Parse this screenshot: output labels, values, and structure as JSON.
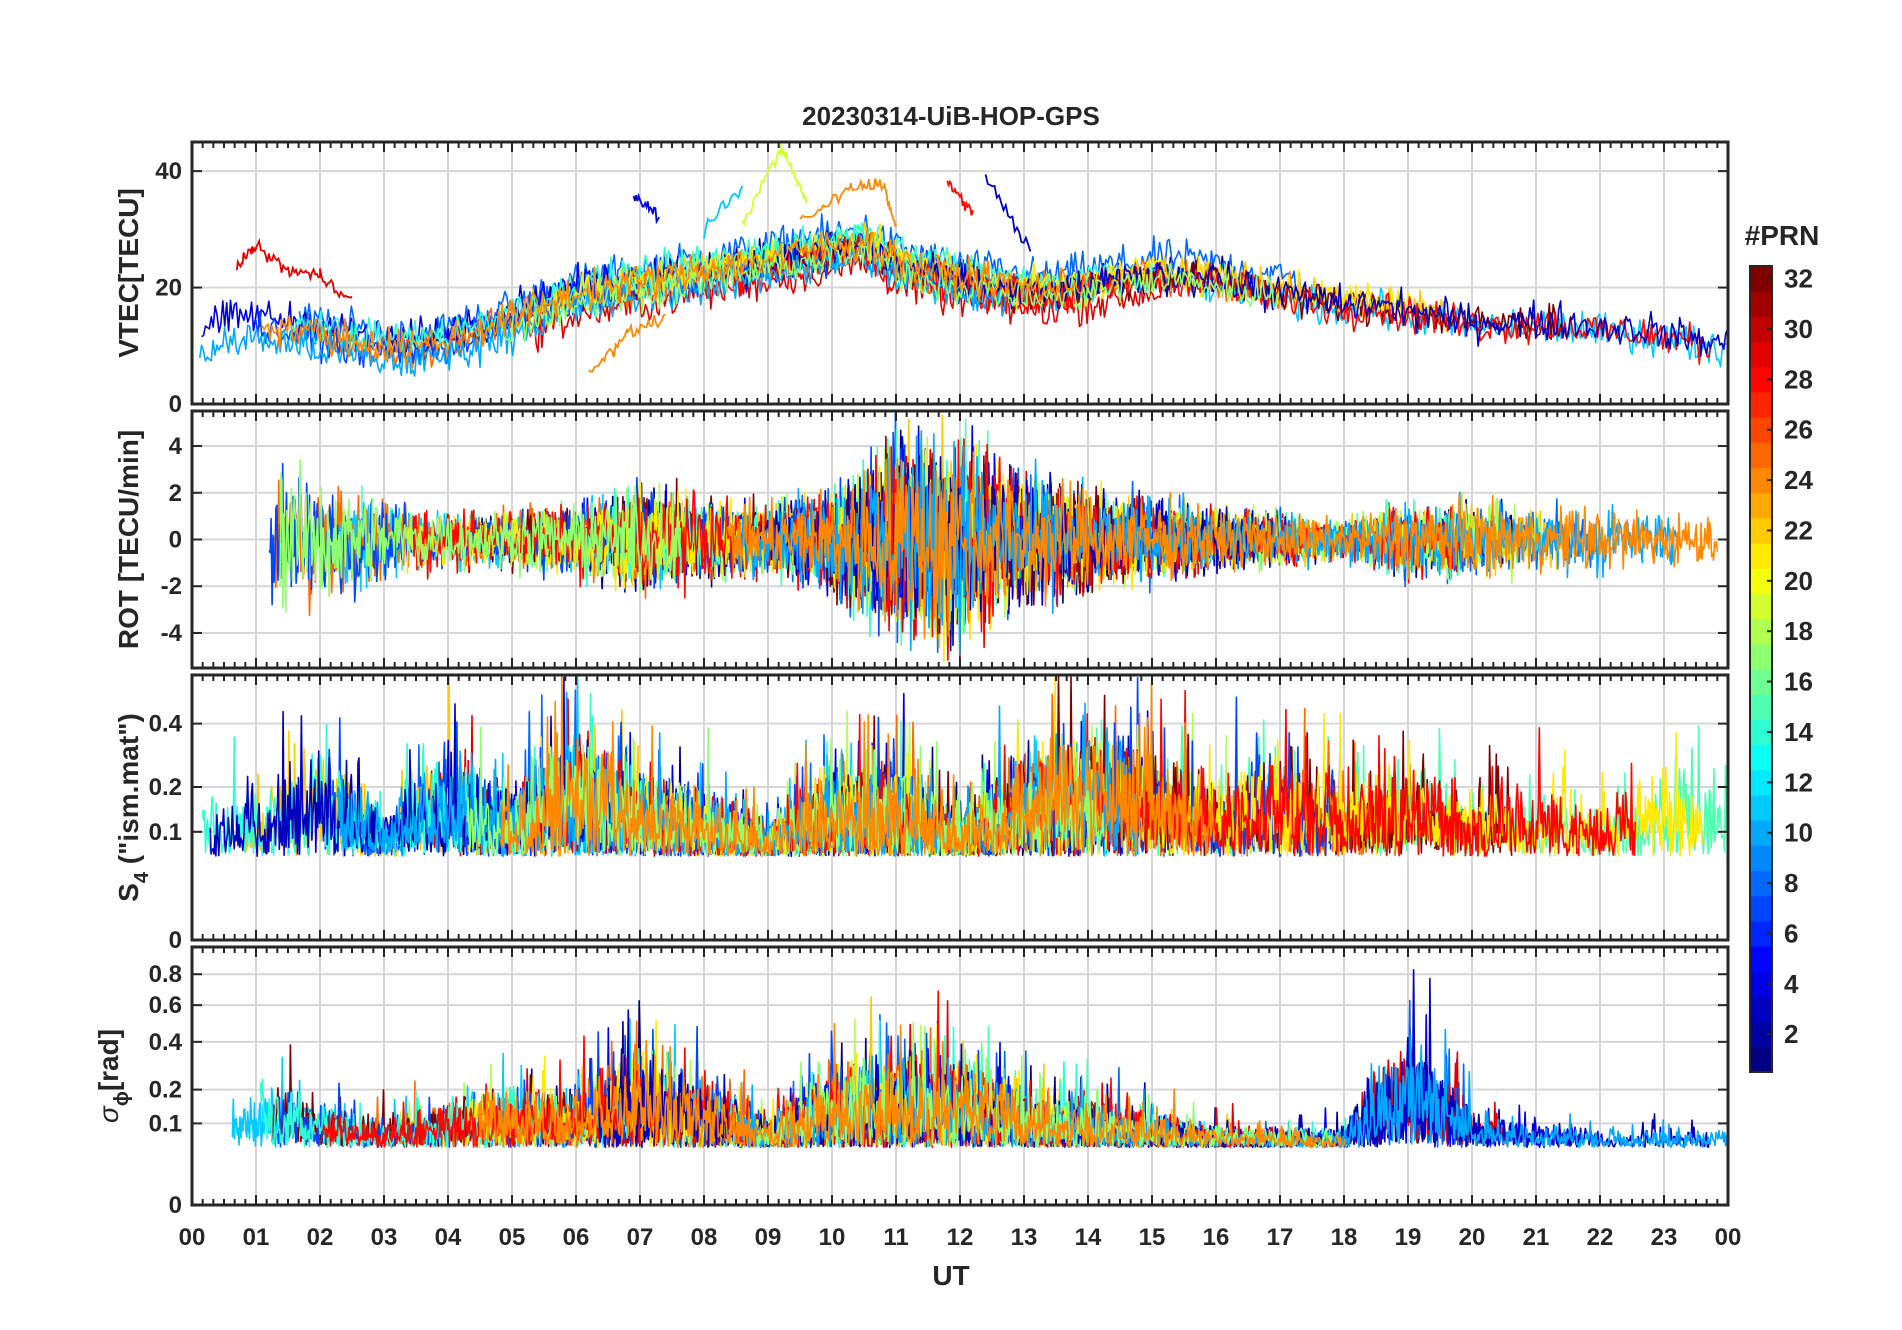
{
  "chart_data": {
    "type": "line",
    "title": "20230314-UiB-HOP-GPS",
    "xlabel": "UT",
    "x_ticks": [
      "00",
      "01",
      "02",
      "03",
      "04",
      "05",
      "06",
      "07",
      "08",
      "09",
      "10",
      "11",
      "12",
      "13",
      "14",
      "15",
      "16",
      "17",
      "18",
      "19",
      "20",
      "21",
      "22",
      "23",
      "00"
    ],
    "xlim": [
      0,
      24
    ],
    "grid": true,
    "colorbar": {
      "label": "#PRN",
      "colormap": "jet",
      "range": [
        1,
        32
      ],
      "ticks": [
        "2",
        "4",
        "6",
        "8",
        "10",
        "12",
        "14",
        "16",
        "18",
        "20",
        "22",
        "24",
        "26",
        "28",
        "30",
        "32"
      ]
    },
    "panels": [
      {
        "id": "vtec",
        "ylabel": "VTEC[TECU]",
        "ylim": [
          0,
          45
        ],
        "yticks": [
          {
            "v": 0,
            "t": "0"
          },
          {
            "v": 20,
            "t": "20"
          },
          {
            "v": 40,
            "t": "40"
          }
        ],
        "baseline": {
          "x": [
            0,
            0.5,
            1,
            1.5,
            2,
            2.5,
            3,
            3.5,
            4,
            4.5,
            5,
            5.5,
            6,
            6.5,
            7,
            7.5,
            8,
            8.5,
            9,
            9.5,
            10,
            10.5,
            11,
            11.5,
            12,
            12.5,
            13,
            13.5,
            14,
            14.5,
            15,
            15.5,
            16,
            16.5,
            17,
            17.5,
            18,
            18.5,
            19,
            19.5,
            20,
            20.5,
            21,
            21.5,
            22,
            22.5,
            23,
            23.5,
            24
          ],
          "y": [
            10,
            12,
            13,
            12,
            11,
            10,
            9,
            9,
            10,
            12,
            14,
            16,
            18,
            19,
            20,
            21,
            22,
            23,
            24,
            25,
            26,
            27,
            24,
            22,
            21,
            20,
            19,
            19,
            20,
            21,
            22,
            22,
            21,
            20,
            19,
            18,
            17,
            17,
            16,
            15,
            14,
            14,
            14,
            14,
            13,
            13,
            12,
            11,
            10
          ]
        },
        "highlights": [
          {
            "prn": 4,
            "x": [
              6.9,
              7.3
            ],
            "y": [
              36,
              32
            ]
          },
          {
            "prn": 3,
            "x": [
              12.4,
              13.1
            ],
            "y": [
              39,
              26
            ]
          },
          {
            "prn": 19,
            "x": [
              8.6,
              9.2,
              9.6
            ],
            "y": [
              31,
              44,
              35
            ]
          },
          {
            "prn": 24,
            "x": [
              9.5,
              10.3,
              10.8,
              11.0
            ],
            "y": [
              31,
              37,
              38,
              30
            ]
          },
          {
            "prn": 28,
            "x": [
              11.8,
              12.2
            ],
            "y": [
              38,
              33
            ]
          },
          {
            "prn": 11,
            "x": [
              8.0,
              8.6
            ],
            "y": [
              30,
              37
            ]
          },
          {
            "prn": 29,
            "x": [
              0.7,
              1.0,
              1.5,
              2.0,
              2.5
            ],
            "y": [
              24,
              27,
              23,
              22,
              18
            ]
          },
          {
            "prn": 24,
            "x": [
              6.2,
              6.8,
              7.4
            ],
            "y": [
              5,
              12,
              15
            ]
          }
        ],
        "noise": 2.2,
        "spikes": 0
      },
      {
        "id": "rot",
        "ylabel": "ROT [TECU/min]",
        "ylim": [
          -5.5,
          5.5
        ],
        "yticks": [
          {
            "v": -4,
            "t": "-4"
          },
          {
            "v": -2,
            "t": "-2"
          },
          {
            "v": 0,
            "t": "0"
          },
          {
            "v": 2,
            "t": "2"
          },
          {
            "v": 4,
            "t": "4"
          }
        ],
        "baseline": {
          "x": [
            0,
            24
          ],
          "y": [
            0,
            0
          ]
        },
        "activity": {
          "x": [
            0,
            1,
            2,
            3,
            4,
            5,
            6,
            7,
            8,
            9,
            10,
            11,
            12,
            13,
            14,
            15,
            16,
            17,
            18,
            19,
            20,
            21,
            22,
            23,
            24
          ],
          "amp": [
            2.0,
            2.6,
            2.0,
            1.3,
            0.9,
            0.9,
            1.1,
            1.6,
            1.3,
            1.0,
            1.6,
            3.2,
            3.2,
            2.0,
            1.6,
            1.3,
            1.0,
            0.8,
            0.7,
            1.2,
            1.2,
            1.0,
            1.1,
            0.9,
            0.7
          ]
        },
        "noise": 1.0,
        "spikes": 0
      },
      {
        "id": "s4",
        "ylabel": "S",
        "ylabel_sub": "4",
        "ylabel_tail": " (\"ism.mat\")",
        "ylim": [
          0,
          0.6
        ],
        "scale": "sqrt",
        "yticks": [
          {
            "v": 0,
            "t": "0"
          },
          {
            "v": 0.1,
            "t": "0.1"
          },
          {
            "v": 0.2,
            "t": "0.2"
          },
          {
            "v": 0.4,
            "t": "0.4"
          }
        ],
        "baseline": {
          "x": [
            0,
            24
          ],
          "y": [
            0.06,
            0.06
          ]
        },
        "activity": {
          "x": [
            0,
            1,
            2,
            3,
            4,
            5,
            6,
            7,
            8,
            9,
            10,
            11,
            12,
            13,
            14,
            15,
            16,
            17,
            18,
            19,
            20,
            21,
            22,
            23,
            24
          ],
          "amp": [
            0.12,
            0.18,
            0.35,
            0.12,
            0.3,
            0.18,
            0.4,
            0.22,
            0.18,
            0.08,
            0.25,
            0.28,
            0.12,
            0.3,
            0.4,
            0.32,
            0.2,
            0.35,
            0.2,
            0.3,
            0.18,
            0.18,
            0.15,
            0.25,
            0.18
          ]
        },
        "noise": 0.05,
        "spikes": 0
      },
      {
        "id": "sigphi",
        "ylabel": "σ",
        "ylabel_sub": "ϕ",
        "ylabel_tail": "[rad]",
        "ylim": [
          0,
          1.0
        ],
        "scale": "sqrt",
        "yticks": [
          {
            "v": 0,
            "t": "0"
          },
          {
            "v": 0.1,
            "t": "0.1"
          },
          {
            "v": 0.2,
            "t": "0.2"
          },
          {
            "v": 0.4,
            "t": "0.4"
          },
          {
            "v": 0.6,
            "t": "0.6"
          },
          {
            "v": 0.8,
            "t": "0.8"
          }
        ],
        "baseline": {
          "x": [
            0,
            24
          ],
          "y": [
            0.05,
            0.05
          ]
        },
        "activity": {
          "x": [
            0,
            1,
            2,
            3,
            4,
            5,
            6,
            7,
            8,
            9,
            10,
            11,
            12,
            13,
            14,
            15,
            16,
            17,
            18,
            19,
            20,
            21,
            22,
            23,
            24
          ],
          "amp": [
            0.08,
            0.25,
            0.15,
            0.08,
            0.15,
            0.2,
            0.18,
            0.4,
            0.22,
            0.08,
            0.3,
            0.35,
            0.35,
            0.18,
            0.15,
            0.1,
            0.06,
            0.05,
            0.05,
            0.55,
            0.1,
            0.08,
            0.05,
            0.05,
            0.05
          ]
        },
        "noise": 0.03,
        "spikes": 0
      }
    ]
  }
}
